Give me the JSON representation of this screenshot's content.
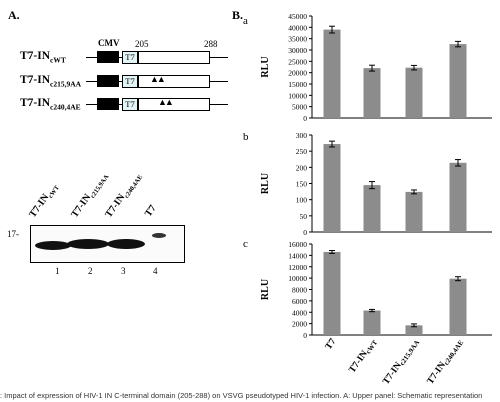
{
  "panel_a": {
    "letter": "A.",
    "promoter": "CMV",
    "pos_start": "205",
    "pos_end": "288",
    "tag": "T7",
    "mutation_mark": "▲▲",
    "constructs": [
      {
        "base": "T7-IN",
        "sub": "c",
        "sub2": "WT"
      },
      {
        "base": "T7-IN",
        "sub": "c",
        "sub2": "215,9AA"
      },
      {
        "base": "T7-IN",
        "sub": "c",
        "sub2": "240,4AE"
      }
    ],
    "blot": {
      "marker": "17-",
      "lanes": [
        {
          "number": "1",
          "base": "T7-IN",
          "sub": "c",
          "sub2": "WT"
        },
        {
          "number": "2",
          "base": "T7-IN",
          "sub": "c",
          "sub2": "215,9AA"
        },
        {
          "number": "3",
          "base": "T7-IN",
          "sub": "c",
          "sub2": "240,4AE"
        },
        {
          "number": "4",
          "base": "T7",
          "sub": "",
          "sub2": ""
        }
      ]
    }
  },
  "panel_b": {
    "letter": "B."
  },
  "chart_data": [
    {
      "type": "bar",
      "panel": "a",
      "ylabel": "RLU",
      "ylim": [
        0,
        45000
      ],
      "yticks": [
        0,
        5000,
        10000,
        15000,
        20000,
        25000,
        30000,
        35000,
        40000,
        45000
      ],
      "ytick_labels": [
        "0",
        "5000",
        "10000",
        "15000",
        "20000",
        "25000",
        "30000",
        "35000",
        "40000",
        "45000"
      ],
      "categories": [
        "T7",
        "T7-INcWT",
        "T7-INc215,9AA",
        "T7-INc240,4AE"
      ],
      "values": [
        39000,
        22000,
        22200,
        32600
      ],
      "errors": [
        1500,
        1300,
        1000,
        1200
      ],
      "bar_color": "#8c8c8c"
    },
    {
      "type": "bar",
      "panel": "b",
      "ylabel": "RLU",
      "ylim": [
        0,
        300
      ],
      "yticks": [
        0,
        50,
        100,
        150,
        200,
        250,
        300
      ],
      "ytick_labels": [
        "0",
        "50",
        "100",
        "150",
        "200",
        "250",
        "300"
      ],
      "categories": [
        "T7",
        "T7-INcWT",
        "T7-INc215,9AA",
        "T7-INc240,4AE"
      ],
      "values": [
        272,
        145,
        124,
        214
      ],
      "errors": [
        9,
        11,
        6,
        10
      ],
      "bar_color": "#8c8c8c"
    },
    {
      "type": "bar",
      "panel": "c",
      "ylabel": "RLU",
      "ylim": [
        0,
        16000
      ],
      "yticks": [
        0,
        2000,
        4000,
        6000,
        8000,
        10000,
        12000,
        14000,
        16000
      ],
      "ytick_labels": [
        "0",
        "2000",
        "4000",
        "6000",
        "8000",
        "10000",
        "12000",
        "14000",
        "16000"
      ],
      "categories": [
        "T7",
        "T7-INcWT",
        "T7-INc215,9AA",
        "T7-INc240,4AE"
      ],
      "values": [
        14600,
        4300,
        1700,
        9900
      ],
      "errors": [
        250,
        200,
        250,
        350
      ],
      "bar_color": "#8c8c8c"
    }
  ],
  "x_labels": [
    {
      "base": "T7",
      "sub": "",
      "sub2": ""
    },
    {
      "base": "T7-IN",
      "sub": "c",
      "sub2": "WT"
    },
    {
      "base": "T7-IN",
      "sub": "c",
      "sub2": "215,9AA"
    },
    {
      "base": "T7-IN",
      "sub": "c",
      "sub2": "240,4AE"
    }
  ],
  "caption": ": Impact of expression of HIV-1 IN C-terminal domain (205-288) on VSVG pseudotyped HIV-1 infection. A: Upper panel: Schematic representation"
}
